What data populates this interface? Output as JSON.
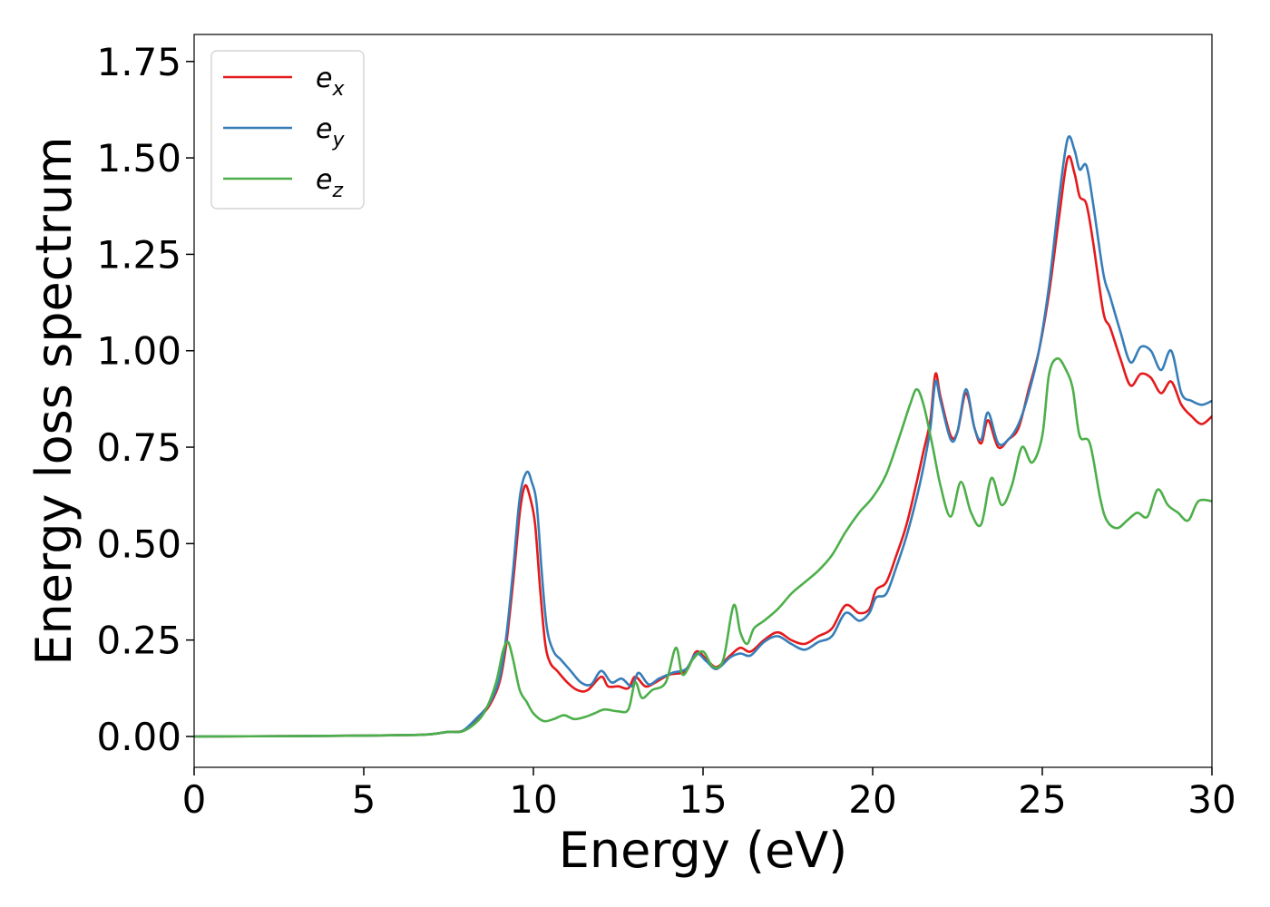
{
  "chart_data": {
    "type": "line",
    "title": "",
    "xlabel": "Energy (eV)",
    "ylabel": "Energy loss spectrum",
    "xlim": [
      0,
      30
    ],
    "ylim": [
      -0.08,
      1.82
    ],
    "xticks": [
      "0",
      "5",
      "10",
      "15",
      "20",
      "25",
      "30"
    ],
    "yticks": [
      "0.00",
      "0.25",
      "0.50",
      "0.75",
      "1.00",
      "1.25",
      "1.50",
      "1.75"
    ],
    "grid": false,
    "legend": "top-left",
    "legend_entries": [
      {
        "base": "e",
        "sub": "x"
      },
      {
        "base": "e",
        "sub": "y"
      },
      {
        "base": "e",
        "sub": "z"
      }
    ],
    "colors": [
      "#e41a1c",
      "#377eb8",
      "#4daf4a"
    ],
    "series": [
      {
        "name": "e_x",
        "color": "#e41a1c",
        "points": [
          [
            0,
            0
          ],
          [
            3,
            0.001
          ],
          [
            5,
            0.002
          ],
          [
            6.5,
            0.004
          ],
          [
            7,
            0.006
          ],
          [
            7.5,
            0.012
          ],
          [
            7.9,
            0.014
          ],
          [
            8.3,
            0.04
          ],
          [
            8.7,
            0.08
          ],
          [
            9,
            0.14
          ],
          [
            9.2,
            0.24
          ],
          [
            9.4,
            0.4
          ],
          [
            9.6,
            0.58
          ],
          [
            9.75,
            0.65
          ],
          [
            9.9,
            0.62
          ],
          [
            10.05,
            0.55
          ],
          [
            10.2,
            0.38
          ],
          [
            10.35,
            0.24
          ],
          [
            10.5,
            0.19
          ],
          [
            10.7,
            0.17
          ],
          [
            11,
            0.14
          ],
          [
            11.3,
            0.12
          ],
          [
            11.6,
            0.12
          ],
          [
            12,
            0.155
          ],
          [
            12.2,
            0.13
          ],
          [
            12.5,
            0.13
          ],
          [
            12.8,
            0.125
          ],
          [
            13,
            0.155
          ],
          [
            13.3,
            0.13
          ],
          [
            13.6,
            0.14
          ],
          [
            14,
            0.16
          ],
          [
            14.5,
            0.17
          ],
          [
            14.8,
            0.22
          ],
          [
            15.1,
            0.2
          ],
          [
            15.4,
            0.18
          ],
          [
            15.8,
            0.21
          ],
          [
            16.1,
            0.23
          ],
          [
            16.4,
            0.22
          ],
          [
            16.8,
            0.25
          ],
          [
            17.2,
            0.27
          ],
          [
            17.6,
            0.25
          ],
          [
            18,
            0.24
          ],
          [
            18.4,
            0.26
          ],
          [
            18.8,
            0.28
          ],
          [
            19.2,
            0.34
          ],
          [
            19.6,
            0.32
          ],
          [
            19.9,
            0.33
          ],
          [
            20.1,
            0.38
          ],
          [
            20.4,
            0.4
          ],
          [
            20.7,
            0.47
          ],
          [
            21,
            0.55
          ],
          [
            21.3,
            0.66
          ],
          [
            21.5,
            0.74
          ],
          [
            21.7,
            0.82
          ],
          [
            21.85,
            0.94
          ],
          [
            22,
            0.88
          ],
          [
            22.3,
            0.78
          ],
          [
            22.5,
            0.79
          ],
          [
            22.75,
            0.89
          ],
          [
            23,
            0.8
          ],
          [
            23.2,
            0.76
          ],
          [
            23.4,
            0.82
          ],
          [
            23.7,
            0.75
          ],
          [
            24,
            0.77
          ],
          [
            24.3,
            0.8
          ],
          [
            24.6,
            0.9
          ],
          [
            24.9,
            1.0
          ],
          [
            25.2,
            1.15
          ],
          [
            25.5,
            1.35
          ],
          [
            25.75,
            1.5
          ],
          [
            25.95,
            1.46
          ],
          [
            26.1,
            1.4
          ],
          [
            26.3,
            1.38
          ],
          [
            26.5,
            1.28
          ],
          [
            26.8,
            1.1
          ],
          [
            27,
            1.06
          ],
          [
            27.3,
            0.98
          ],
          [
            27.6,
            0.91
          ],
          [
            27.9,
            0.94
          ],
          [
            28.2,
            0.93
          ],
          [
            28.5,
            0.89
          ],
          [
            28.8,
            0.92
          ],
          [
            29.1,
            0.86
          ],
          [
            29.4,
            0.83
          ],
          [
            29.7,
            0.81
          ],
          [
            30,
            0.83
          ]
        ]
      },
      {
        "name": "e_y",
        "color": "#377eb8",
        "points": [
          [
            0,
            0
          ],
          [
            3,
            0.001
          ],
          [
            5,
            0.002
          ],
          [
            6.5,
            0.004
          ],
          [
            7,
            0.006
          ],
          [
            7.5,
            0.012
          ],
          [
            7.9,
            0.014
          ],
          [
            8.3,
            0.045
          ],
          [
            8.7,
            0.085
          ],
          [
            9,
            0.15
          ],
          [
            9.2,
            0.26
          ],
          [
            9.4,
            0.43
          ],
          [
            9.6,
            0.62
          ],
          [
            9.8,
            0.685
          ],
          [
            9.95,
            0.66
          ],
          [
            10.1,
            0.6
          ],
          [
            10.25,
            0.42
          ],
          [
            10.4,
            0.28
          ],
          [
            10.6,
            0.22
          ],
          [
            10.8,
            0.2
          ],
          [
            11.1,
            0.17
          ],
          [
            11.4,
            0.14
          ],
          [
            11.7,
            0.135
          ],
          [
            12,
            0.17
          ],
          [
            12.3,
            0.14
          ],
          [
            12.6,
            0.15
          ],
          [
            12.9,
            0.13
          ],
          [
            13.1,
            0.165
          ],
          [
            13.4,
            0.135
          ],
          [
            13.7,
            0.15
          ],
          [
            14.1,
            0.165
          ],
          [
            14.5,
            0.175
          ],
          [
            14.8,
            0.215
          ],
          [
            15.1,
            0.195
          ],
          [
            15.4,
            0.175
          ],
          [
            15.8,
            0.205
          ],
          [
            16.1,
            0.215
          ],
          [
            16.4,
            0.21
          ],
          [
            16.8,
            0.245
          ],
          [
            17.2,
            0.26
          ],
          [
            17.6,
            0.24
          ],
          [
            18,
            0.225
          ],
          [
            18.4,
            0.245
          ],
          [
            18.8,
            0.26
          ],
          [
            19.2,
            0.32
          ],
          [
            19.6,
            0.3
          ],
          [
            19.9,
            0.32
          ],
          [
            20.1,
            0.36
          ],
          [
            20.4,
            0.37
          ],
          [
            20.7,
            0.44
          ],
          [
            21,
            0.52
          ],
          [
            21.3,
            0.62
          ],
          [
            21.5,
            0.7
          ],
          [
            21.7,
            0.8
          ],
          [
            21.85,
            0.92
          ],
          [
            22,
            0.87
          ],
          [
            22.3,
            0.77
          ],
          [
            22.5,
            0.79
          ],
          [
            22.75,
            0.9
          ],
          [
            23,
            0.8
          ],
          [
            23.2,
            0.77
          ],
          [
            23.4,
            0.84
          ],
          [
            23.7,
            0.76
          ],
          [
            24,
            0.77
          ],
          [
            24.3,
            0.81
          ],
          [
            24.6,
            0.89
          ],
          [
            24.9,
            1.0
          ],
          [
            25.2,
            1.17
          ],
          [
            25.5,
            1.4
          ],
          [
            25.75,
            1.55
          ],
          [
            25.95,
            1.52
          ],
          [
            26.1,
            1.47
          ],
          [
            26.3,
            1.48
          ],
          [
            26.5,
            1.38
          ],
          [
            26.8,
            1.2
          ],
          [
            27,
            1.14
          ],
          [
            27.3,
            1.05
          ],
          [
            27.6,
            0.97
          ],
          [
            27.9,
            1.01
          ],
          [
            28.2,
            1.0
          ],
          [
            28.5,
            0.95
          ],
          [
            28.8,
            1.0
          ],
          [
            29.1,
            0.89
          ],
          [
            29.4,
            0.87
          ],
          [
            29.7,
            0.86
          ],
          [
            30,
            0.87
          ]
        ]
      },
      {
        "name": "e_z",
        "color": "#4daf4a",
        "points": [
          [
            0,
            0
          ],
          [
            3,
            0.001
          ],
          [
            5,
            0.002
          ],
          [
            6.5,
            0.004
          ],
          [
            7,
            0.006
          ],
          [
            7.5,
            0.012
          ],
          [
            7.9,
            0.013
          ],
          [
            8.3,
            0.035
          ],
          [
            8.6,
            0.07
          ],
          [
            8.9,
            0.14
          ],
          [
            9.1,
            0.22
          ],
          [
            9.25,
            0.245
          ],
          [
            9.4,
            0.2
          ],
          [
            9.6,
            0.12
          ],
          [
            9.8,
            0.09
          ],
          [
            10,
            0.06
          ],
          [
            10.3,
            0.04
          ],
          [
            10.6,
            0.045
          ],
          [
            10.9,
            0.055
          ],
          [
            11.2,
            0.045
          ],
          [
            11.5,
            0.05
          ],
          [
            11.8,
            0.06
          ],
          [
            12.1,
            0.07
          ],
          [
            12.5,
            0.065
          ],
          [
            12.8,
            0.07
          ],
          [
            13,
            0.14
          ],
          [
            13.2,
            0.1
          ],
          [
            13.5,
            0.12
          ],
          [
            13.9,
            0.14
          ],
          [
            14.2,
            0.23
          ],
          [
            14.4,
            0.16
          ],
          [
            14.7,
            0.2
          ],
          [
            15,
            0.22
          ],
          [
            15.3,
            0.18
          ],
          [
            15.6,
            0.2
          ],
          [
            15.9,
            0.34
          ],
          [
            16.1,
            0.27
          ],
          [
            16.3,
            0.24
          ],
          [
            16.5,
            0.28
          ],
          [
            16.8,
            0.3
          ],
          [
            17.2,
            0.33
          ],
          [
            17.6,
            0.37
          ],
          [
            18,
            0.4
          ],
          [
            18.4,
            0.43
          ],
          [
            18.8,
            0.47
          ],
          [
            19.2,
            0.53
          ],
          [
            19.6,
            0.58
          ],
          [
            20,
            0.62
          ],
          [
            20.4,
            0.68
          ],
          [
            20.8,
            0.78
          ],
          [
            21.1,
            0.86
          ],
          [
            21.3,
            0.9
          ],
          [
            21.5,
            0.86
          ],
          [
            21.75,
            0.76
          ],
          [
            22,
            0.65
          ],
          [
            22.3,
            0.57
          ],
          [
            22.6,
            0.66
          ],
          [
            22.9,
            0.58
          ],
          [
            23.2,
            0.55
          ],
          [
            23.5,
            0.67
          ],
          [
            23.8,
            0.6
          ],
          [
            24.1,
            0.65
          ],
          [
            24.4,
            0.75
          ],
          [
            24.7,
            0.71
          ],
          [
            25,
            0.78
          ],
          [
            25.2,
            0.94
          ],
          [
            25.45,
            0.98
          ],
          [
            25.7,
            0.95
          ],
          [
            25.9,
            0.9
          ],
          [
            26.1,
            0.78
          ],
          [
            26.4,
            0.76
          ],
          [
            26.7,
            0.62
          ],
          [
            26.9,
            0.56
          ],
          [
            27.2,
            0.54
          ],
          [
            27.5,
            0.56
          ],
          [
            27.8,
            0.58
          ],
          [
            28.1,
            0.57
          ],
          [
            28.4,
            0.64
          ],
          [
            28.7,
            0.6
          ],
          [
            29,
            0.58
          ],
          [
            29.3,
            0.56
          ],
          [
            29.6,
            0.61
          ],
          [
            30,
            0.61
          ]
        ]
      }
    ]
  }
}
